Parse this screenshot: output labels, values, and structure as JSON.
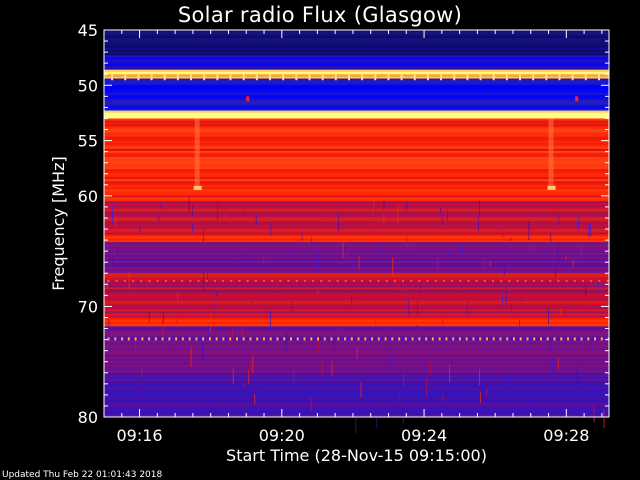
{
  "chart_data": {
    "type": "heatmap",
    "title": "Solar radio Flux (Glasgow)",
    "xlabel": "Start Time (28-Nov-15 09:15:00)",
    "ylabel": "Frequency [MHz]",
    "x_ticks": [
      "09:16",
      "09:20",
      "09:24",
      "09:28"
    ],
    "x_tick_minutes": [
      1,
      5,
      9,
      13
    ],
    "xlim_minutes": [
      0,
      14.2
    ],
    "y_ticks": [
      45,
      50,
      55,
      60,
      70,
      80
    ],
    "ylim": [
      45,
      80
    ],
    "colors": {
      "low": "#0000cc",
      "mid": "#ff0000",
      "high": "#ffff99"
    },
    "bands": [
      {
        "f0": 45.0,
        "f1": 47.3,
        "level": "deep-blue"
      },
      {
        "f0": 47.3,
        "f1": 48.6,
        "level": "blue"
      },
      {
        "f0": 48.6,
        "f1": 49.4,
        "level": "hot"
      },
      {
        "f0": 49.4,
        "f1": 52.3,
        "level": "blue"
      },
      {
        "f0": 52.3,
        "f1": 53.0,
        "level": "hot"
      },
      {
        "f0": 53.0,
        "f1": 60.5,
        "level": "red"
      },
      {
        "f0": 60.5,
        "f1": 63.5,
        "level": "red-purple"
      },
      {
        "f0": 63.5,
        "f1": 64.2,
        "level": "bright-red"
      },
      {
        "f0": 64.2,
        "f1": 67.0,
        "level": "purple"
      },
      {
        "f0": 67.0,
        "f1": 71.0,
        "level": "red-purple"
      },
      {
        "f0": 71.0,
        "f1": 71.8,
        "level": "bright-red"
      },
      {
        "f0": 71.8,
        "f1": 76.0,
        "level": "purple"
      },
      {
        "f0": 76.0,
        "f1": 80.0,
        "level": "blue-purple"
      }
    ]
  },
  "footer": "Updated Thu Feb 22 01:01:43 2018"
}
